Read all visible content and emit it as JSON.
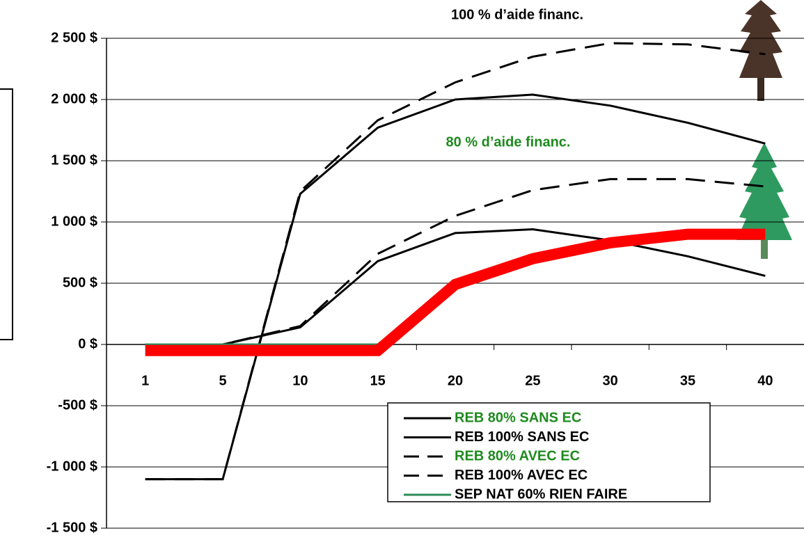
{
  "chart_data": {
    "type": "line",
    "title": "100 % d’aide financ.",
    "annotation": "80 % d’aide financ.",
    "categories": [
      "1",
      "5",
      "10",
      "15",
      "20",
      "25",
      "30",
      "35",
      "40"
    ],
    "ylim": [
      -1500,
      2500
    ],
    "yticks": [
      {
        "value": 2500,
        "label": "2 500 $"
      },
      {
        "value": 2000,
        "label": "2 000 $"
      },
      {
        "value": 1500,
        "label": "1 500 $"
      },
      {
        "value": 1000,
        "label": "1 000 $"
      },
      {
        "value": 500,
        "label": "500 $"
      },
      {
        "value": 0,
        "label": "0 $"
      },
      {
        "value": -500,
        "label": "-500 $"
      },
      {
        "value": -1000,
        "label": "-1 000 $"
      },
      {
        "value": -1500,
        "label": "-1 500 $"
      }
    ],
    "grid": true,
    "series": [
      {
        "name": "REB 80% SANS EC",
        "color": "#000000",
        "label_color": "#1e8a1e",
        "dashed": false,
        "values": [
          0,
          0,
          140,
          680,
          910,
          940,
          850,
          720,
          560
        ]
      },
      {
        "name": "REB 100% SANS EC",
        "color": "#000000",
        "label_color": "#000000",
        "dashed": false,
        "values": [
          -1100,
          -1100,
          1230,
          1770,
          2000,
          2040,
          1950,
          1810,
          1640
        ]
      },
      {
        "name": "REB 80% AVEC EC",
        "color": "#000000",
        "label_color": "#1e8a1e",
        "dashed": true,
        "values": [
          0,
          0,
          150,
          740,
          1050,
          1260,
          1350,
          1350,
          1290
        ]
      },
      {
        "name": "REB 100% AVEC EC",
        "color": "#000000",
        "label_color": "#000000",
        "dashed": true,
        "values": [
          -1100,
          -1100,
          1250,
          1830,
          2140,
          2350,
          2460,
          2450,
          2370
        ]
      },
      {
        "name": "SEP NAT 60% RIEN FAIRE",
        "color": "#2e8b57",
        "label_color": "#000000",
        "dashed": false,
        "values": [
          0,
          0,
          0,
          0,
          510,
          720,
          850,
          900,
          900
        ]
      },
      {
        "color": "#ff0000",
        "dashed": false,
        "thick": true,
        "values": [
          -50,
          -50,
          -50,
          -50,
          490,
          700,
          830,
          900,
          900
        ]
      }
    ]
  }
}
